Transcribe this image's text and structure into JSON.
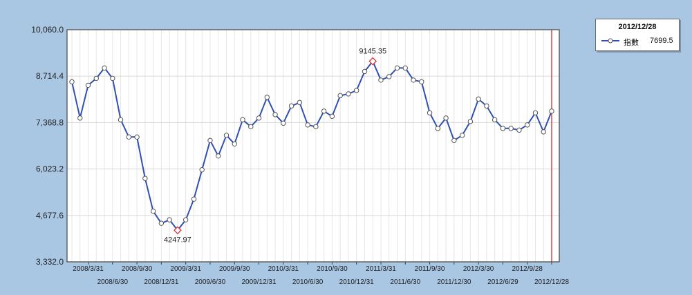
{
  "chart_data": {
    "type": "line",
    "ylim": [
      3332.0,
      10060.0
    ],
    "yticks": [
      "10,060.0",
      "8,714.4",
      "7,368.8",
      "6,023.2",
      "4,677.6",
      "3,332.0"
    ],
    "xtick_labels_top": [
      "2008/3/31",
      "2008/9/30",
      "2009/3/31",
      "2009/9/30",
      "2010/3/31",
      "2010/9/30",
      "2011/3/31",
      "2011/9/30",
      "2012/3/30",
      "2012/9/28"
    ],
    "xtick_labels_bottom": [
      "2008/6/30",
      "2008/12/31",
      "2009/6/30",
      "2009/12/31",
      "2010/6/30",
      "2010/12/31",
      "2011/6/30",
      "2011/12/30",
      "2012/6/29",
      "2012/12/28"
    ],
    "x": [
      "2008/1/31",
      "2008/2/29",
      "2008/3/31",
      "2008/4/30",
      "2008/5/30",
      "2008/6/30",
      "2008/7/31",
      "2008/8/29",
      "2008/9/30",
      "2008/10/31",
      "2008/11/28",
      "2008/12/31",
      "2009/1/30",
      "2009/2/27",
      "2009/3/31",
      "2009/4/30",
      "2009/5/29",
      "2009/6/30",
      "2009/7/31",
      "2009/8/31",
      "2009/9/30",
      "2009/10/30",
      "2009/11/30",
      "2009/12/31",
      "2010/1/29",
      "2010/2/26",
      "2010/3/31",
      "2010/4/30",
      "2010/5/31",
      "2010/6/30",
      "2010/7/30",
      "2010/8/31",
      "2010/9/30",
      "2010/10/29",
      "2010/11/30",
      "2010/12/31",
      "2011/1/31",
      "2011/2/28",
      "2011/3/31",
      "2011/4/29",
      "2011/5/31",
      "2011/6/30",
      "2011/7/29",
      "2011/8/31",
      "2011/9/30",
      "2011/10/31",
      "2011/11/30",
      "2011/12/30",
      "2012/1/31",
      "2012/2/29",
      "2012/3/30",
      "2012/4/30",
      "2012/5/31",
      "2012/6/29",
      "2012/7/31",
      "2012/8/31",
      "2012/9/28",
      "2012/10/31",
      "2012/11/30",
      "2012/12/28"
    ],
    "series": [
      {
        "name": "指數",
        "color": "#2f4fb3",
        "values": [
          8550,
          7500,
          8450,
          8650,
          8950,
          8650,
          7450,
          6950,
          6950,
          5750,
          4800,
          4450,
          4550,
          4247.97,
          4550,
          5150,
          6000,
          6850,
          6400,
          7000,
          6750,
          7450,
          7250,
          7500,
          8100,
          7600,
          7350,
          7850,
          7950,
          7300,
          7250,
          7700,
          7550,
          8150,
          8200,
          8300,
          8850,
          9145.35,
          8600,
          8700,
          8950,
          8950,
          8600,
          8550,
          7650,
          7200,
          7500,
          6850,
          7000,
          7400,
          8050,
          7850,
          7450,
          7200,
          7200,
          7150,
          7300,
          7650,
          7100,
          7699.5
        ]
      }
    ],
    "annotations": [
      {
        "label": "9145.35",
        "x": "2011/2/28",
        "y": 9145.35
      },
      {
        "label": "4247.97",
        "x": "2009/2/27",
        "y": 4247.97
      }
    ],
    "legend": {
      "title": "2012/12/28",
      "series_name": "指數",
      "value": "7699.5",
      "position": "top-right"
    },
    "cursor_line": {
      "x": "2012/12/28",
      "color": "#e04040"
    },
    "grid": true
  }
}
